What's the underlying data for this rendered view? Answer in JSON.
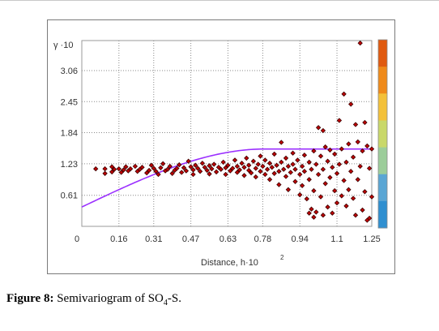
{
  "caption": {
    "label": "Figure 8:",
    "text_before": "Semivariogram of SO",
    "subscript": "4",
    "text_after": "-S."
  },
  "chart_data": {
    "type": "scatter",
    "title": "",
    "xlabel": "Distance, h",
    "xlabel_suffix": "·10",
    "xlabel_exponent": "2",
    "ylabel": "γ ·10",
    "y_top_label": "γ ·10",
    "xlim": [
      0,
      1.25
    ],
    "ylim": [
      0,
      3.65
    ],
    "x_ticks": [
      0,
      0.16,
      0.31,
      0.47,
      0.63,
      0.78,
      0.94,
      1.1,
      1.25
    ],
    "x_tick_labels": [
      "0",
      "0.16",
      "0.31",
      "0.47",
      "0.63",
      "0.78",
      "0.94",
      "1.1",
      "1.25"
    ],
    "y_ticks": [
      0.61,
      1.23,
      1.84,
      2.45,
      3.06
    ],
    "y_tick_labels": [
      "0.61",
      "1.23",
      "1.84",
      "2.45",
      "3.06"
    ],
    "grid": true,
    "colors": {
      "points": "#c00000",
      "point_edge": "#3a0000",
      "model_curve": "#9b30ff",
      "colorbar": [
        "#e05a10",
        "#ef8a1a",
        "#f3c13a",
        "#c9d86a",
        "#9ccd9a",
        "#5aa6d4",
        "#2f8fd0"
      ]
    },
    "model": {
      "name": "spherical",
      "nugget": 0.38,
      "sill": 1.52,
      "range": 0.79
    },
    "series": [
      {
        "values": [
          [
            0.06,
            1.13
          ],
          [
            0.1,
            1.13
          ],
          [
            0.1,
            1.04
          ],
          [
            0.13,
            1.17
          ],
          [
            0.13,
            1.07
          ],
          [
            0.14,
            1.12
          ],
          [
            0.16,
            1.13
          ],
          [
            0.17,
            1.06
          ],
          [
            0.18,
            1.11
          ],
          [
            0.19,
            1.17
          ],
          [
            0.2,
            1.09
          ],
          [
            0.21,
            1.13
          ],
          [
            0.23,
            1.18
          ],
          [
            0.24,
            1.08
          ],
          [
            0.25,
            1.12
          ],
          [
            0.26,
            1.16
          ],
          [
            0.28,
            1.05
          ],
          [
            0.29,
            1.1
          ],
          [
            0.3,
            1.2
          ],
          [
            0.31,
            1.14
          ],
          [
            0.32,
            1.08
          ],
          [
            0.33,
            1.02
          ],
          [
            0.34,
            1.15
          ],
          [
            0.35,
            1.23
          ],
          [
            0.36,
            1.09
          ],
          [
            0.37,
            1.12
          ],
          [
            0.38,
            1.18
          ],
          [
            0.39,
            1.04
          ],
          [
            0.4,
            1.1
          ],
          [
            0.41,
            1.14
          ],
          [
            0.42,
            1.21
          ],
          [
            0.43,
            1.06
          ],
          [
            0.44,
            1.15
          ],
          [
            0.45,
            1.09
          ],
          [
            0.46,
            1.28
          ],
          [
            0.47,
            1.17
          ],
          [
            0.48,
            1.11
          ],
          [
            0.48,
            1.02
          ],
          [
            0.49,
            1.2
          ],
          [
            0.5,
            1.14
          ],
          [
            0.51,
            1.08
          ],
          [
            0.52,
            1.24
          ],
          [
            0.53,
            1.16
          ],
          [
            0.54,
            1.1
          ],
          [
            0.55,
            1.19
          ],
          [
            0.55,
            1.03
          ],
          [
            0.56,
            1.13
          ],
          [
            0.57,
            1.22
          ],
          [
            0.58,
            1.07
          ],
          [
            0.59,
            1.16
          ],
          [
            0.6,
            1.12
          ],
          [
            0.61,
            1.26
          ],
          [
            0.62,
            1.02
          ],
          [
            0.62,
            1.15
          ],
          [
            0.63,
            1.2
          ],
          [
            0.64,
            1.09
          ],
          [
            0.65,
            1.14
          ],
          [
            0.66,
            1.3
          ],
          [
            0.67,
            1.06
          ],
          [
            0.67,
            1.18
          ],
          [
            0.68,
            1.11
          ],
          [
            0.69,
            1.24
          ],
          [
            0.7,
            1.0
          ],
          [
            0.7,
            1.16
          ],
          [
            0.71,
            1.34
          ],
          [
            0.72,
            1.1
          ],
          [
            0.72,
            1.2
          ],
          [
            0.73,
            1.05
          ],
          [
            0.74,
            1.28
          ],
          [
            0.75,
            1.14
          ],
          [
            0.75,
            0.97
          ],
          [
            0.76,
            1.22
          ],
          [
            0.77,
            1.38
          ],
          [
            0.77,
            1.08
          ],
          [
            0.78,
            1.18
          ],
          [
            0.79,
            1.3
          ],
          [
            0.79,
            1.02
          ],
          [
            0.8,
            1.12
          ],
          [
            0.81,
            1.24
          ],
          [
            0.81,
            0.92
          ],
          [
            0.82,
            1.16
          ],
          [
            0.83,
            1.42
          ],
          [
            0.83,
            1.04
          ],
          [
            0.84,
            1.2
          ],
          [
            0.85,
            1.08
          ],
          [
            0.85,
            0.82
          ],
          [
            0.86,
            1.65
          ],
          [
            0.86,
            1.26
          ],
          [
            0.87,
            1.12
          ],
          [
            0.88,
            0.98
          ],
          [
            0.88,
            1.34
          ],
          [
            0.89,
            1.18
          ],
          [
            0.89,
            0.72
          ],
          [
            0.9,
            1.06
          ],
          [
            0.91,
            1.44
          ],
          [
            0.91,
            1.22
          ],
          [
            0.92,
            0.88
          ],
          [
            0.92,
            1.12
          ],
          [
            0.93,
            1.3
          ],
          [
            0.94,
            0.62
          ],
          [
            0.94,
            1.02
          ],
          [
            0.95,
            1.18
          ],
          [
            0.95,
            0.8
          ],
          [
            0.96,
            1.4
          ],
          [
            0.96,
            1.08
          ],
          [
            0.97,
            0.54
          ],
          [
            0.98,
            1.26
          ],
          [
            0.98,
            0.92
          ],
          [
            0.99,
            0.34
          ],
          [
            0.99,
            1.12
          ],
          [
            1.0,
            1.48
          ],
          [
            1.0,
            0.7
          ],
          [
            1.01,
            1.22
          ],
          [
            1.01,
            0.28
          ],
          [
            1.02,
            1.94
          ],
          [
            1.02,
            1.02
          ],
          [
            1.03,
            1.38
          ],
          [
            1.03,
            0.58
          ],
          [
            1.04,
            1.88
          ],
          [
            1.04,
            1.12
          ],
          [
            1.05,
            0.84
          ],
          [
            1.05,
            1.56
          ],
          [
            1.06,
            0.38
          ],
          [
            1.06,
            1.28
          ],
          [
            1.07,
            0.96
          ],
          [
            1.07,
            1.5
          ],
          [
            1.08,
            0.26
          ],
          [
            1.08,
            1.16
          ],
          [
            1.09,
            0.7
          ],
          [
            1.09,
            1.42
          ],
          [
            1.1,
            1.04
          ],
          [
            1.1,
            0.46
          ],
          [
            1.11,
            2.08
          ],
          [
            1.11,
            1.22
          ],
          [
            1.12,
            0.6
          ],
          [
            1.12,
            1.52
          ],
          [
            1.13,
            0.9
          ],
          [
            1.13,
            2.6
          ],
          [
            1.14,
            1.26
          ],
          [
            1.14,
            0.4
          ],
          [
            1.15,
            1.62
          ],
          [
            1.15,
            0.72
          ],
          [
            1.16,
            2.4
          ],
          [
            1.16,
            1.08
          ],
          [
            1.17,
            0.55
          ],
          [
            1.17,
            1.36
          ],
          [
            1.18,
            2.0
          ],
          [
            1.18,
            0.22
          ],
          [
            1.19,
            1.66
          ],
          [
            1.19,
            0.92
          ],
          [
            1.2,
            3.6
          ],
          [
            1.2,
            1.18
          ],
          [
            1.21,
            1.48
          ],
          [
            1.21,
            0.32
          ],
          [
            1.22,
            2.04
          ],
          [
            1.22,
            0.68
          ],
          [
            1.23,
            1.58
          ],
          [
            1.23,
            0.12
          ],
          [
            1.24,
            1.14
          ],
          [
            1.24,
            0.16
          ],
          [
            1.25,
            1.52
          ],
          [
            1.25,
            0.58
          ],
          [
            1.04,
            0.22
          ],
          [
            0.98,
            0.26
          ],
          [
            1.0,
            0.18
          ]
        ]
      }
    ]
  }
}
